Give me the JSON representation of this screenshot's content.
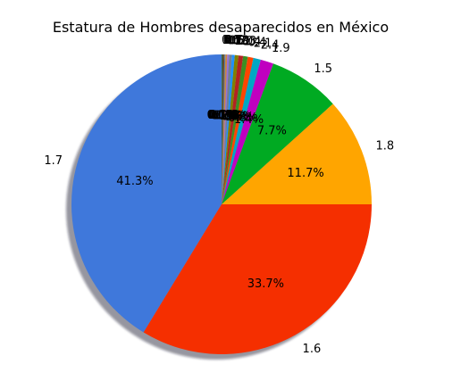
{
  "chart_data": {
    "type": "pie",
    "title": "Estatura de Hombres desaparecidos en México",
    "shadow": true,
    "slices": [
      {
        "label": "1.7",
        "value": 41.3,
        "pct_text": "41.3%",
        "color": "#3f78db"
      },
      {
        "label": "1.6",
        "value": 33.7,
        "pct_text": "33.7%",
        "color": "#f52f00"
      },
      {
        "label": "1.8",
        "value": 11.7,
        "pct_text": "11.7%",
        "color": "#ffa500"
      },
      {
        "label": "1.5",
        "value": 7.7,
        "pct_text": "7.7%",
        "color": "#00aa22"
      },
      {
        "label": "1.9",
        "value": 1.4,
        "pct_text": "1.4%",
        "color": "#c000c0"
      },
      {
        "label": "2.4",
        "value": 0.8,
        "pct_text": "0.8%",
        "color": "#00a7c4"
      },
      {
        "label": "2.1",
        "value": 0.6,
        "pct_text": "0.6%",
        "color": "#ff4500"
      },
      {
        "label": "0.4",
        "value": 0.5,
        "pct_text": "0.5%",
        "color": "#3c8f22"
      },
      {
        "label": "1.4",
        "value": 0.5,
        "pct_text": "0.5%",
        "color": "#b22222"
      },
      {
        "label": "0.3",
        "value": 0.4,
        "pct_text": "0.4%",
        "color": "#808000"
      },
      {
        "label": "1.0",
        "value": 0.3,
        "pct_text": "0.3%",
        "color": "#1e90ff"
      },
      {
        "label": "0.9",
        "value": 0.3,
        "pct_text": "0.3%",
        "color": "#708090"
      },
      {
        "label": "0.2",
        "value": 0.2,
        "pct_text": "0.2%",
        "color": "#9370db"
      },
      {
        "label": "0.8",
        "value": 0.2,
        "pct_text": "0.2%",
        "color": "#cd853f"
      },
      {
        "label": "0.6",
        "value": 0.1,
        "pct_text": "0.1%",
        "color": "#4682b4"
      },
      {
        "label": "0.7",
        "value": 0.1,
        "pct_text": "0.1%",
        "color": "#8b4513"
      },
      {
        "label": "0.5",
        "value": 0.1,
        "pct_text": "0.1%",
        "color": "#2f4f4f"
      },
      {
        "label": "1.1",
        "value": 0.1,
        "pct_text": "0.1%",
        "color": "#556b2f"
      },
      {
        "label": "0.0",
        "value": 0.0,
        "pct_text": "0.0%",
        "color": "#7b68ee"
      }
    ]
  }
}
